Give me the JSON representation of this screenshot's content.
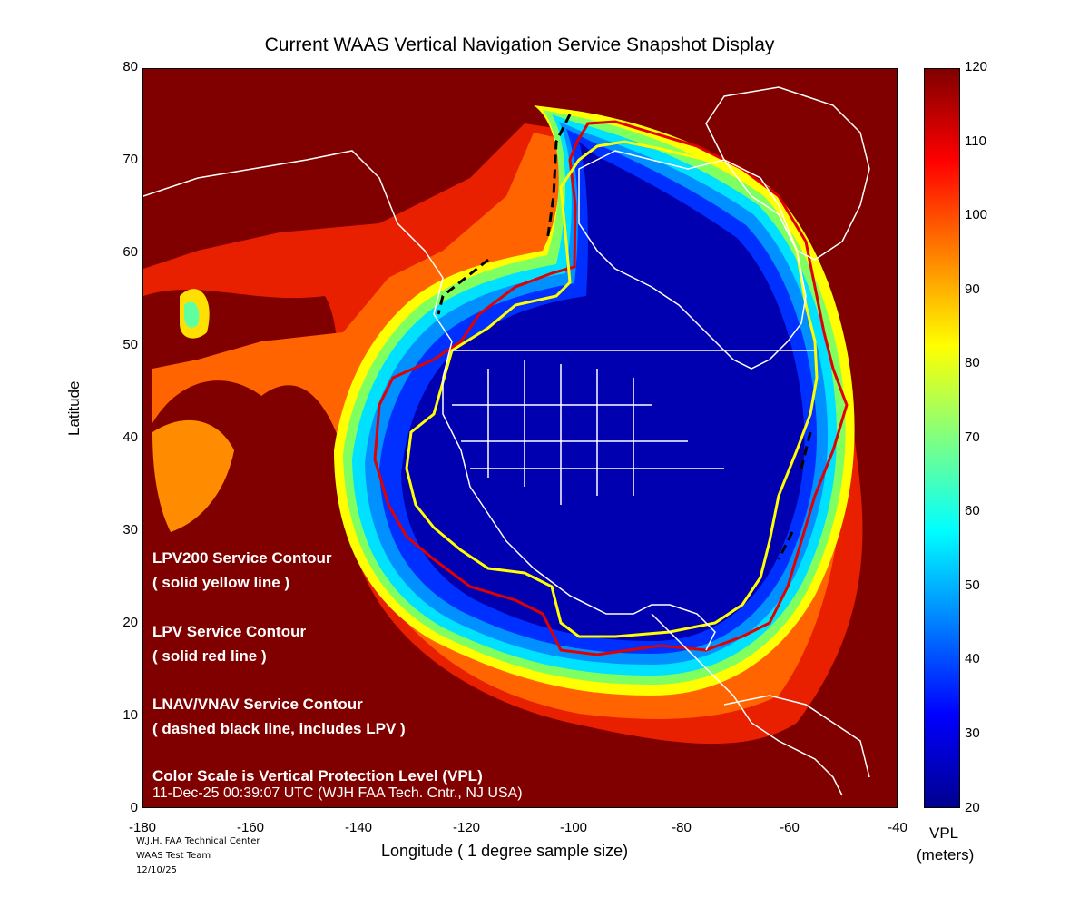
{
  "title": "Current WAAS Vertical Navigation Service Snapshot Display",
  "axes": {
    "ylabel": "Latitude",
    "xlabel": "Longitude   ( 1 degree sample size)",
    "xticks": [
      "-180",
      "-160",
      "-140",
      "-120",
      "-100",
      "-80",
      "-60",
      "-40"
    ],
    "yticks": [
      "80",
      "70",
      "60",
      "50",
      "40",
      "30",
      "20",
      "10",
      "0"
    ],
    "xlim": [
      -180,
      -40
    ],
    "ylim": [
      0,
      80
    ]
  },
  "colorbar": {
    "ticks": [
      "120",
      "110",
      "100",
      "90",
      "80",
      "70",
      "60",
      "50",
      "40",
      "30",
      "20"
    ],
    "range": [
      20,
      120
    ],
    "label_line1": "VPL",
    "label_line2": "(meters)",
    "colors": [
      "#00008f",
      "#0000ff",
      "#0080ff",
      "#00ffff",
      "#80ff80",
      "#ffff00",
      "#ff8000",
      "#ff0000",
      "#800000"
    ]
  },
  "legend": {
    "lpv200_title": "LPV200 Service Contour",
    "lpv200_desc": "( solid yellow line )",
    "lpv_title": "LPV Service Contour",
    "lpv_desc": "( solid red line )",
    "lnav_title": "LNAV/VNAV Service Contour",
    "lnav_desc": "( dashed black line, includes LPV )",
    "scale_note": "Color Scale is Vertical Protection Level (VPL)",
    "timestamp": "11-Dec-25 00:39:07 UTC  (WJH FAA Tech. Cntr., NJ USA)"
  },
  "credits": {
    "line1": "W.J.H. FAA Technical Center",
    "line2": "WAAS Test Team",
    "line3": "12/10/25"
  },
  "contour_colors": {
    "lpv200": "#ffff00",
    "lpv": "#e00000",
    "lnav_vnav": "#000000",
    "coastline": "#ffffff",
    "background_vpl": "#800000"
  }
}
